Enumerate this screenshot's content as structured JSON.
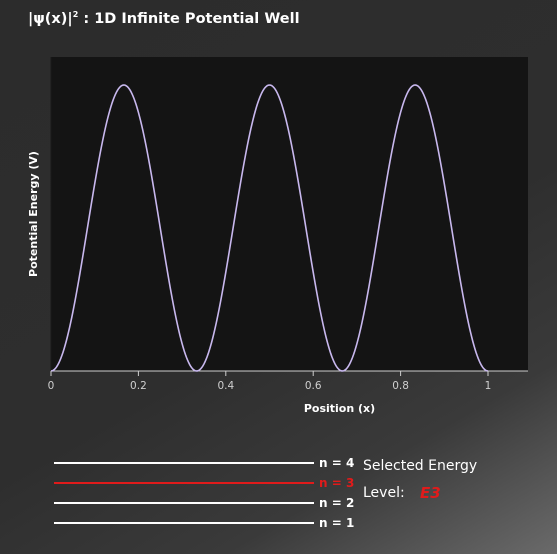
{
  "title": {
    "prefix": "|ψ(x)|",
    "sup": "2",
    "suffix": " : 1D Infinite Potential Well"
  },
  "chart_data": {
    "type": "line",
    "xlabel": "Position (x)",
    "ylabel": "Potential Energy (V)",
    "xlim": [
      0,
      1
    ],
    "xticks": [
      "0",
      "0.2",
      "0.4",
      "0.6",
      "0.8",
      "1"
    ],
    "function": "|psi_3(x)|^2 = 2 sin^2(3 pi x)",
    "series": [
      {
        "color": "#c8b8ee",
        "x": [
          0,
          0.025,
          0.05,
          0.075,
          0.1,
          0.125,
          0.15,
          0.1667,
          0.175,
          0.2,
          0.225,
          0.25,
          0.275,
          0.3,
          0.325,
          0.3333,
          0.35,
          0.375,
          0.4,
          0.425,
          0.45,
          0.475,
          0.5,
          0.525,
          0.55,
          0.575,
          0.6,
          0.625,
          0.65,
          0.6667,
          0.675,
          0.7,
          0.725,
          0.75,
          0.775,
          0.8,
          0.825,
          0.8333,
          0.85,
          0.875,
          0.9,
          0.925,
          0.95,
          0.975,
          1
        ],
        "y": [
          0,
          0.11,
          0.41,
          0.85,
          1.31,
          1.71,
          1.95,
          2,
          1.98,
          1.81,
          1.46,
          1,
          0.54,
          0.19,
          0.02,
          0,
          0.05,
          0.29,
          0.69,
          1.15,
          1.59,
          1.89,
          2,
          1.89,
          1.59,
          1.15,
          0.69,
          0.29,
          0.05,
          0,
          0.02,
          0.19,
          0.54,
          1,
          1.46,
          1.81,
          1.98,
          2,
          1.95,
          1.71,
          1.31,
          0.85,
          0.41,
          0.11,
          0
        ]
      }
    ]
  },
  "energy_levels": [
    {
      "label": "n = 4"
    },
    {
      "label": "n = 3"
    },
    {
      "label": "n = 2"
    },
    {
      "label": "n = 1"
    }
  ],
  "selected_index": 1,
  "selection": {
    "heading": "Selected Energy",
    "level_label": "Level:",
    "value": "E3"
  },
  "colors": {
    "plot_background": "#141414",
    "curve": "#c8b8ee",
    "selected": "#e01b1b",
    "axis": "#cfcfcf"
  }
}
